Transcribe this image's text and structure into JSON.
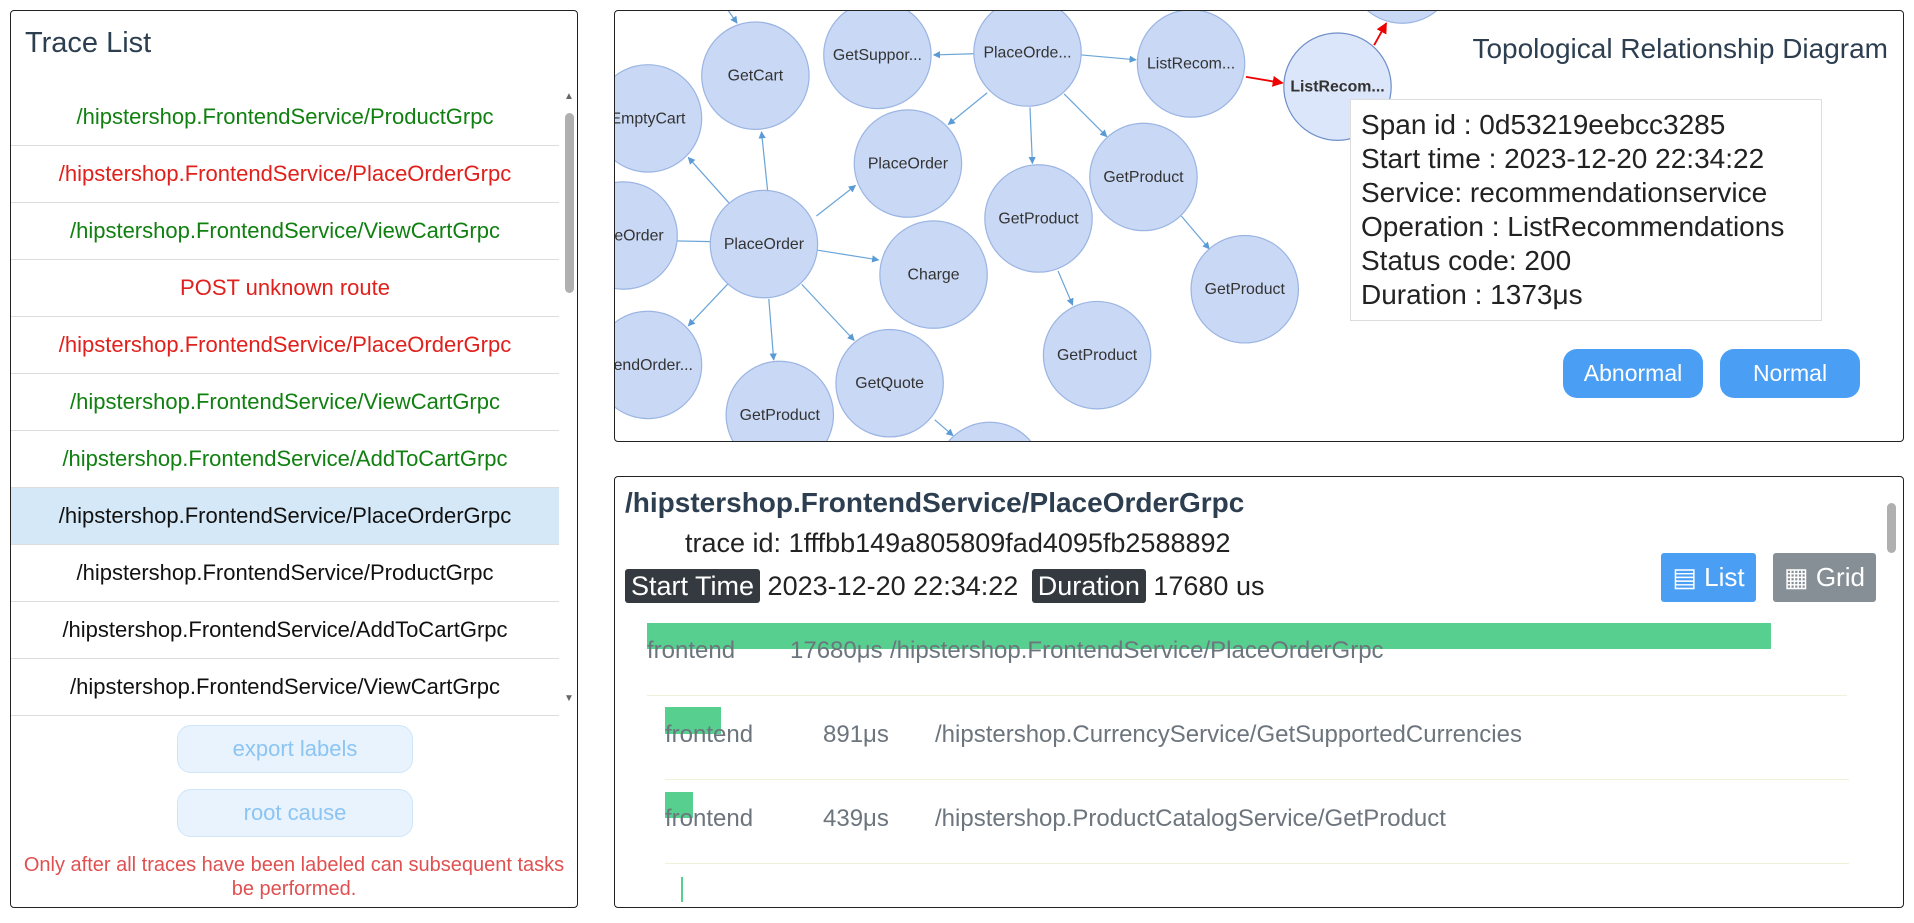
{
  "trace_list": {
    "title": "Trace List",
    "items": [
      {
        "text": "/hipstershop.FrontendService/ProductGrpc",
        "status": "normal"
      },
      {
        "text": "/hipstershop.FrontendService/PlaceOrderGrpc",
        "status": "abnormal"
      },
      {
        "text": "/hipstershop.FrontendService/ViewCartGrpc",
        "status": "normal"
      },
      {
        "text": "POST unknown route",
        "status": "abnormal"
      },
      {
        "text": "/hipstershop.FrontendService/PlaceOrderGrpc",
        "status": "abnormal"
      },
      {
        "text": "/hipstershop.FrontendService/ViewCartGrpc",
        "status": "normal"
      },
      {
        "text": "/hipstershop.FrontendService/AddToCartGrpc",
        "status": "normal"
      },
      {
        "text": "/hipstershop.FrontendService/PlaceOrderGrpc",
        "status": "unlabeled",
        "selected": true
      },
      {
        "text": "/hipstershop.FrontendService/ProductGrpc",
        "status": "unlabeled"
      },
      {
        "text": "/hipstershop.FrontendService/AddToCartGrpc",
        "status": "unlabeled"
      },
      {
        "text": "/hipstershop.FrontendService/ViewCartGrpc",
        "status": "unlabeled"
      }
    ],
    "export_button": "export labels",
    "root_cause_button": "root cause",
    "warning": "Only after all traces have been labeled can subsequent tasks be performed."
  },
  "topology": {
    "title": "Topological Relationship Diagram",
    "nodes": [
      "EmptyCart",
      "GetCart",
      "GetSuppor...",
      "PlaceOrde...",
      "ListRecom...",
      "ListRecom...",
      "PlaceOrder",
      "PlaceOrder",
      "PlaceOrder",
      "Charge",
      "GetProduct",
      "GetProduct",
      "GetProduct",
      "GetProduct",
      "GetQuote",
      "GetProduct",
      "SendOrder..."
    ],
    "tooltip": [
      "Span id : 0d53219eebcc3285",
      "Start time : 2023-12-20 22:34:22",
      "Service: recommendationservice",
      "Operation : ListRecommendations",
      "Status code: 200",
      "Duration : 1373μs"
    ],
    "abnormal_button": "Abnormal",
    "normal_button": "Normal"
  },
  "trace_detail": {
    "title": "/hipstershop.FrontendService/PlaceOrderGrpc",
    "trace_id_label": "trace id:",
    "trace_id": "1fffbb149a805809fad4095fb2588892",
    "start_time_label": "Start Time",
    "start_time": "2023-12-20 22:34:22",
    "duration_label": "Duration",
    "duration": "17680 us",
    "list_button": "List",
    "grid_button": "Grid",
    "spans": [
      {
        "service": "frontend",
        "duration": "17680μs",
        "operation": "/hipstershop.FrontendService/PlaceOrderGrpc"
      },
      {
        "service": "frontend",
        "duration": "891μs",
        "operation": "/hipstershop.CurrencyService/GetSupportedCurrencies"
      },
      {
        "service": "frontend",
        "duration": "439μs",
        "operation": "/hipstershop.ProductCatalogService/GetProduct"
      }
    ]
  }
}
